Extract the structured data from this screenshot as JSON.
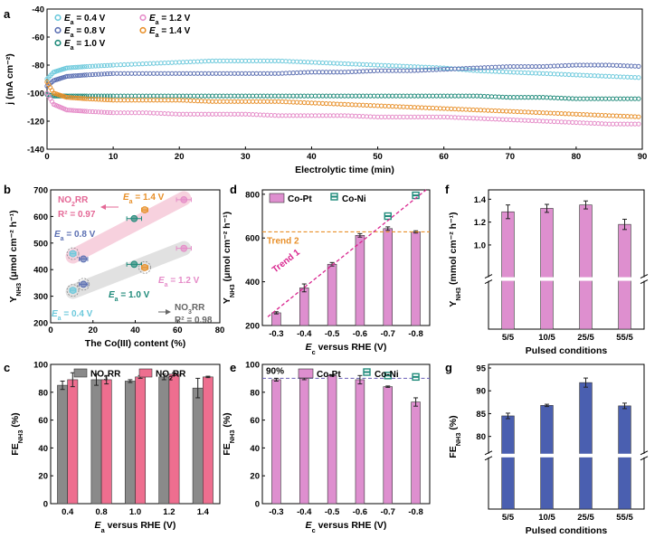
{
  "colors": {
    "d0_4": "#6cc9dc",
    "d0_8": "#5b6fb2",
    "d1_0": "#1f8a7a",
    "d1_2": "#e58bc8",
    "d1_4": "#e8902a",
    "pink_bar": "#de8fcf",
    "teal": "#1f8a7a",
    "grey_bar": "#8a8a8a",
    "rose_bar": "#ee6e8f",
    "blue_bar": "#4a5fb0",
    "trend1": "#d9268f",
    "trend2": "#e8902a"
  },
  "chart_data": [
    {
      "panel": "a",
      "type": "line",
      "xlabel": "Electrolytic time (min)",
      "ylabel": "j (mA cm⁻²)",
      "xlim": [
        0,
        90
      ],
      "ylim": [
        -140,
        -40
      ],
      "xticks": [
        "0",
        "10",
        "20",
        "30",
        "40",
        "50",
        "60",
        "70",
        "80",
        "90"
      ],
      "yticks": [
        "-40",
        "-60",
        "-80",
        "-100",
        "-120",
        "-140"
      ],
      "series": [
        {
          "name": "Ea = 0.4 V",
          "label_prefix": "E",
          "label_sub": "a",
          "label_value": " = 0.4 V",
          "color_key": "d0_4",
          "x": [
            0,
            1,
            3,
            6,
            10,
            15,
            20,
            25,
            30,
            35,
            40,
            45,
            50,
            55,
            60,
            65,
            70,
            75,
            80,
            85,
            90
          ],
          "y": [
            -90,
            -85,
            -82,
            -81,
            -80,
            -79,
            -78,
            -77,
            -77,
            -77,
            -78,
            -79,
            -80,
            -81,
            -82,
            -84,
            -85,
            -86,
            -87,
            -88,
            -89
          ]
        },
        {
          "name": "Ea = 0.8 V",
          "label_prefix": "E",
          "label_sub": "a",
          "label_value": " = 0.8 V",
          "color_key": "d0_8",
          "x": [
            0,
            1,
            3,
            6,
            10,
            15,
            20,
            25,
            30,
            35,
            40,
            45,
            50,
            55,
            60,
            65,
            70,
            75,
            80,
            85,
            90
          ],
          "y": [
            -95,
            -91,
            -88,
            -87,
            -86,
            -86,
            -86,
            -86,
            -86,
            -86,
            -85,
            -85,
            -84,
            -84,
            -83,
            -82,
            -81,
            -81,
            -80,
            -80,
            -81
          ]
        },
        {
          "name": "Ea = 1.0 V",
          "label_prefix": "E",
          "label_sub": "a",
          "label_value": " = 1.0 V",
          "color_key": "d1_0",
          "x": [
            0,
            1,
            3,
            6,
            10,
            15,
            20,
            25,
            30,
            35,
            40,
            45,
            50,
            55,
            60,
            65,
            70,
            75,
            80,
            85,
            90
          ],
          "y": [
            -101,
            -102,
            -102,
            -102,
            -102,
            -102,
            -102,
            -102,
            -102,
            -102,
            -102,
            -102,
            -102,
            -102,
            -102,
            -102,
            -103,
            -103,
            -104,
            -104,
            -104
          ]
        },
        {
          "name": "Ea = 1.2 V",
          "label_prefix": "E",
          "label_sub": "a",
          "label_value": " = 1.2 V",
          "color_key": "d1_2",
          "x": [
            0,
            1,
            3,
            6,
            10,
            15,
            20,
            25,
            30,
            35,
            40,
            45,
            50,
            55,
            60,
            65,
            70,
            75,
            80,
            85,
            90
          ],
          "y": [
            -100,
            -108,
            -112,
            -113,
            -114,
            -114,
            -115,
            -115,
            -115,
            -116,
            -116,
            -116,
            -117,
            -117,
            -117,
            -118,
            -119,
            -120,
            -121,
            -122,
            -122
          ]
        },
        {
          "name": "Ea = 1.4 V",
          "label_prefix": "E",
          "label_sub": "a",
          "label_value": " = 1.4 V",
          "color_key": "d1_4",
          "x": [
            0,
            1,
            3,
            6,
            10,
            15,
            20,
            25,
            30,
            35,
            40,
            45,
            50,
            55,
            60,
            65,
            70,
            75,
            80,
            85,
            90
          ],
          "y": [
            -92,
            -100,
            -103,
            -104,
            -105,
            -105,
            -105,
            -106,
            -106,
            -106,
            -107,
            -108,
            -109,
            -110,
            -111,
            -112,
            -113,
            -114,
            -115,
            -116,
            -117
          ]
        }
      ]
    },
    {
      "panel": "b",
      "type": "scatter",
      "xlabel": "The Co(III) content (%)",
      "ylabel": "Y",
      "ylabel_sub": "NH3",
      "ylabel_unit": " (μmol cm⁻² h⁻¹)",
      "xlim": [
        0,
        80
      ],
      "ylim": [
        200,
        700
      ],
      "xticks": [
        "0",
        "20",
        "40",
        "60",
        "80"
      ],
      "yticks": [
        "200",
        "300",
        "400",
        "500",
        "600",
        "700"
      ],
      "points": [
        {
          "label": "0.4 V",
          "color_key": "d0_4",
          "x": 10.5,
          "xerr": 1.5,
          "y_no2": 460,
          "y_no3": 322
        },
        {
          "label": "0.8 V",
          "color_key": "d0_8",
          "x": 15.5,
          "xerr": 2,
          "y_no2": 440,
          "y_no3": 345
        },
        {
          "label": "1.0 V",
          "color_key": "d1_0",
          "x": 39.5,
          "xerr": 3.5,
          "y_no2": 592,
          "y_no3": 420
        },
        {
          "label": "1.4 V",
          "color_key": "d1_4",
          "x": 44.5,
          "xerr": 1.5,
          "y_no2": 625,
          "y_no3": 408
        },
        {
          "label": "1.2 V",
          "color_key": "d1_2",
          "x": 63,
          "xerr": 3.5,
          "y_no2": 663,
          "y_no3": 480
        }
      ],
      "annot_no2_label": "NO",
      "annot_no2_sub": "2",
      "annot_no2_rr": "RR",
      "annot_no2_r2": "R² = 0.97",
      "annot_no3_label": "NO",
      "annot_no3_sub": "3",
      "annot_no3_rr": "RR",
      "annot_no3_r2": "R² = 0.98",
      "labels": [
        {
          "prefix": "E",
          "sub": "a",
          "value": " = 1.4 V",
          "color_key": "d1_4"
        },
        {
          "prefix": "E",
          "sub": "a",
          "value": " = 0.8 V",
          "color_key": "d0_8"
        },
        {
          "prefix": "E",
          "sub": "a",
          "value": " = 1.2 V",
          "color_key": "d1_2"
        },
        {
          "prefix": "E",
          "sub": "a",
          "value": " = 1.0 V",
          "color_key": "d1_0"
        },
        {
          "prefix": "E",
          "sub": "a",
          "value": " = 0.4 V",
          "color_key": "d0_4"
        }
      ]
    },
    {
      "panel": "c",
      "type": "bar",
      "xlabel": "E",
      "xlabel_sub": "a",
      "xlabel_rest": " versus RHE (V)",
      "ylabel": "FE",
      "ylabel_sub": "NH3",
      "ylabel_unit": " (%)",
      "categories": [
        "0.4",
        "0.8",
        "1.0",
        "1.2",
        "1.4"
      ],
      "ylim": [
        0,
        100
      ],
      "yticks": [
        "0",
        "20",
        "40",
        "60",
        "80",
        "100"
      ],
      "series": [
        {
          "name": "NO3RR",
          "name_main": "NO",
          "name_sub": "3",
          "name_tail": "RR",
          "color_key": "grey_bar",
          "values": [
            85,
            89,
            88,
            91,
            83
          ],
          "err": [
            3,
            4,
            1,
            2,
            7
          ]
        },
        {
          "name": "NO2RR",
          "name_main": "NO",
          "name_sub": "2",
          "name_tail": "RR",
          "color_key": "rose_bar",
          "values": [
            89,
            89,
            91,
            93,
            91
          ],
          "err": [
            5,
            3,
            1,
            1,
            0.5
          ]
        }
      ]
    },
    {
      "panel": "d",
      "type": "bar",
      "xlabel": "E",
      "xlabel_sub": "c",
      "xlabel_rest": " versus RHE (V)",
      "ylabel": "Y",
      "ylabel_sub": "NH3",
      "ylabel_unit": " (μmol cm⁻² h⁻¹)",
      "categories": [
        "-0.3",
        "-0.4",
        "-0.5",
        "-0.6",
        "-0.7",
        "-0.8"
      ],
      "ylim": [
        200,
        820
      ],
      "yticks": [
        "200",
        "400",
        "600",
        "800"
      ],
      "series": [
        {
          "name": "Co-Pt",
          "color_key": "pink_bar",
          "values": [
            258,
            372,
            480,
            612,
            643,
            628
          ],
          "err": [
            5,
            18,
            8,
            8,
            8,
            5
          ]
        },
        {
          "name": "Co-Ni",
          "color_key": "teal",
          "marker": "square",
          "values": [
            null,
            null,
            null,
            null,
            700,
            795
          ]
        }
      ],
      "trend1_label": "Trend 1",
      "trend2_label": "Trend 2",
      "trend2_value": 628
    },
    {
      "panel": "e",
      "type": "bar",
      "xlabel": "E",
      "xlabel_sub": "c",
      "xlabel_rest": " versus RHE (V)",
      "ylabel": "FE",
      "ylabel_sub": "NH3",
      "ylabel_unit": " (%)",
      "categories": [
        "-0.3",
        "-0.4",
        "-0.5",
        "-0.6",
        "-0.7",
        "-0.8"
      ],
      "ylim": [
        0,
        100
      ],
      "yticks": [
        "0",
        "20",
        "40",
        "60",
        "80",
        "100"
      ],
      "series": [
        {
          "name": "Co-Pt",
          "color_key": "pink_bar",
          "values": [
            89,
            90,
            92,
            89,
            84,
            73
          ],
          "err": [
            1,
            1,
            0.5,
            3,
            0.5,
            3
          ]
        },
        {
          "name": "Co-Ni",
          "color_key": "teal",
          "marker": "square",
          "values": [
            null,
            null,
            null,
            null,
            92,
            91
          ]
        }
      ],
      "ref_label": "90%",
      "ref_value": 90
    },
    {
      "panel": "f",
      "type": "bar",
      "xlabel": "Pulsed conditions",
      "ylabel": "Y",
      "ylabel_sub": "NH3",
      "ylabel_unit": " (mmol cm⁻² h⁻¹)",
      "categories": [
        "5/5",
        "10/5",
        "25/5",
        "55/5"
      ],
      "ylim": [
        0,
        1.45
      ],
      "axis_break": true,
      "yticks": [
        "1.0",
        "1.2",
        "1.4"
      ],
      "color_key": "pink_bar",
      "values": [
        1.29,
        1.32,
        1.35,
        1.18
      ],
      "err": [
        0.06,
        0.035,
        0.035,
        0.045
      ]
    },
    {
      "panel": "g",
      "type": "bar",
      "xlabel": "Pulsed conditions",
      "ylabel": "FE",
      "ylabel_sub": "NH3",
      "ylabel_unit": " (%)",
      "categories": [
        "5/5",
        "10/5",
        "25/5",
        "55/5"
      ],
      "ylim": [
        0,
        95
      ],
      "axis_break": true,
      "yticks": [
        "80",
        "85",
        "90",
        "95"
      ],
      "color_key": "blue_bar",
      "values": [
        84.5,
        86.8,
        91.8,
        86.7
      ],
      "err": [
        0.6,
        0.25,
        1.0,
        0.6
      ]
    }
  ]
}
